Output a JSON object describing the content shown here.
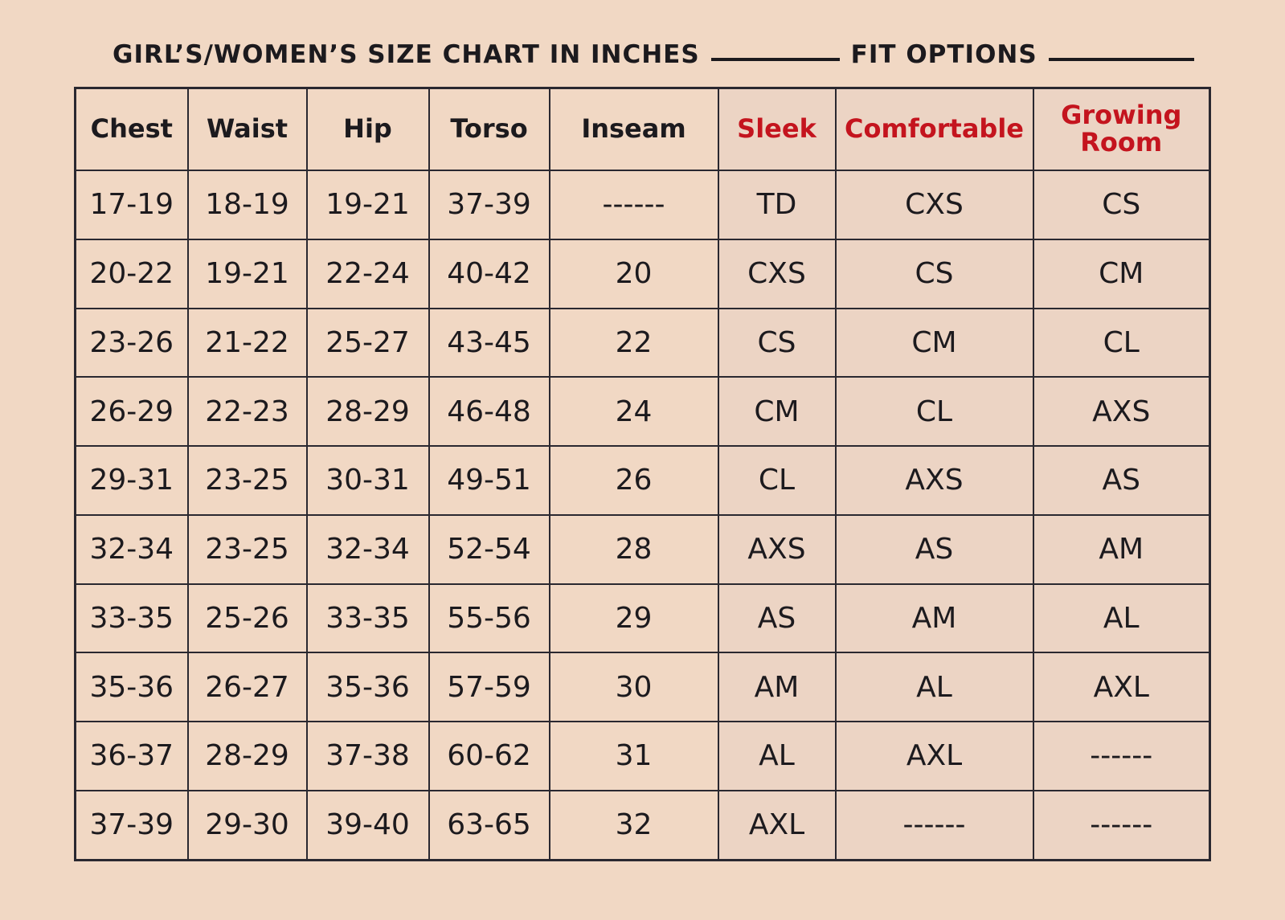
{
  "header": {
    "title": "GIRL’S/WOMEN’S SIZE CHART IN INCHES",
    "fit_options": "FIT OPTIONS"
  },
  "table": {
    "columns": [
      "Chest",
      "Waist",
      "Hip",
      "Torso",
      "Inseam",
      "Sleek",
      "Comfortable",
      "Growing Room"
    ],
    "rows": [
      [
        "17-19",
        "18-19",
        "19-21",
        "37-39",
        "------",
        "TD",
        "CXS",
        "CS"
      ],
      [
        "20-22",
        "19-21",
        "22-24",
        "40-42",
        "20",
        "CXS",
        "CS",
        "CM"
      ],
      [
        "23-26",
        "21-22",
        "25-27",
        "43-45",
        "22",
        "CS",
        "CM",
        "CL"
      ],
      [
        "26-29",
        "22-23",
        "28-29",
        "46-48",
        "24",
        "CM",
        "CL",
        "AXS"
      ],
      [
        "29-31",
        "23-25",
        "30-31",
        "49-51",
        "26",
        "CL",
        "AXS",
        "AS"
      ],
      [
        "32-34",
        "23-25",
        "32-34",
        "52-54",
        "28",
        "AXS",
        "AS",
        "AM"
      ],
      [
        "33-35",
        "25-26",
        "33-35",
        "55-56",
        "29",
        "AS",
        "AM",
        "AL"
      ],
      [
        "35-36",
        "26-27",
        "35-36",
        "57-59",
        "30",
        "AM",
        "AL",
        "AXL"
      ],
      [
        "36-37",
        "28-29",
        "37-38",
        "60-62",
        "31",
        "AL",
        "AXL",
        "------"
      ],
      [
        "37-39",
        "29-30",
        "39-40",
        "63-65",
        "32",
        "AXL",
        "------",
        "------"
      ]
    ]
  }
}
